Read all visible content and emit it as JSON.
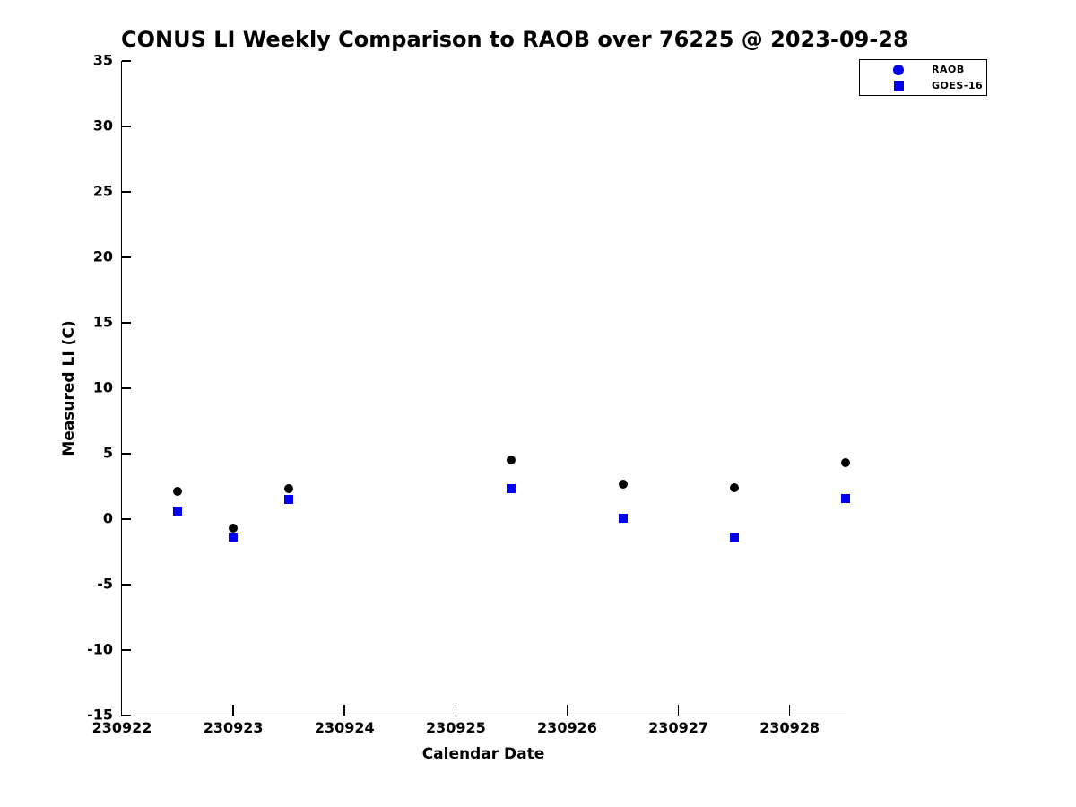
{
  "chart_data": {
    "type": "scatter",
    "title": "CONUS LI Weekly Comparison to RAOB over 76225 @ 2023-09-28",
    "xlabel": "Calendar Date",
    "ylabel": "Measured LI (C)",
    "xlim": [
      230922,
      230928.51
    ],
    "ylim": [
      -15,
      35
    ],
    "xticks": [
      230922,
      230923,
      230924,
      230925,
      230926,
      230927,
      230928
    ],
    "yticks": [
      35,
      30,
      25,
      20,
      15,
      10,
      5,
      0,
      -5,
      -10,
      -15
    ],
    "grid": false,
    "legend_position": "top-right",
    "x": [
      230922.5,
      230923.0,
      230923.5,
      230925.5,
      230926.5,
      230927.5,
      230928.5
    ],
    "series": [
      {
        "name": "RAOB",
        "marker": "circle",
        "plot_color": "#000000",
        "legend_color": "#0000ee",
        "values": [
          2.1,
          -0.7,
          2.3,
          4.5,
          2.7,
          2.4,
          4.3
        ]
      },
      {
        "name": "GOES-16",
        "marker": "square",
        "plot_color": "#0000ee",
        "legend_color": "#0000ee",
        "values": [
          0.6,
          -1.4,
          1.5,
          2.3,
          0.1,
          -1.4,
          1.6
        ]
      }
    ]
  }
}
